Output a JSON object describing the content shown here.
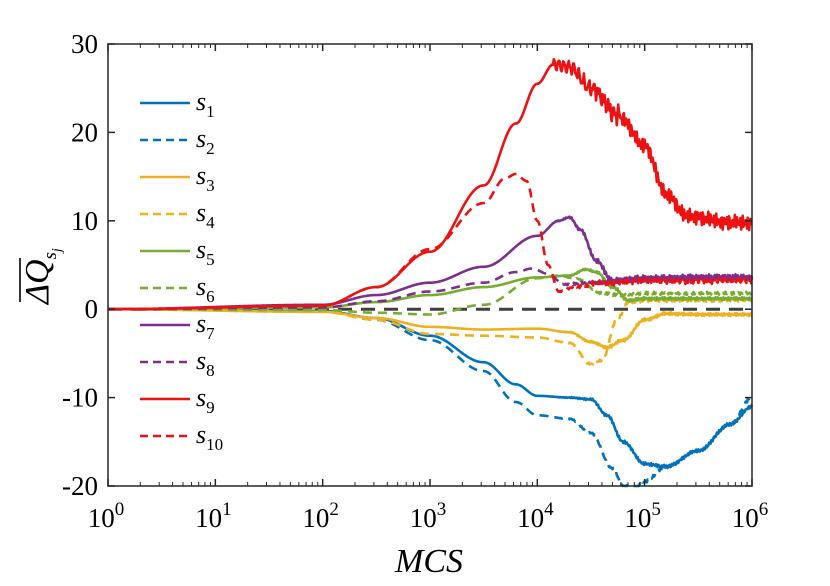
{
  "chart_data": {
    "type": "line",
    "xscale": "log",
    "xlim": [
      1,
      1000000
    ],
    "ylim": [
      -20,
      30
    ],
    "xlabel": "MCS",
    "ylabel": {
      "main": "ΔQ",
      "sub": "s",
      "subsub": "j"
    },
    "legend_position": "left",
    "x_ticks": [
      {
        "base": "10",
        "exp": "0",
        "value": 1
      },
      {
        "base": "10",
        "exp": "1",
        "value": 10
      },
      {
        "base": "10",
        "exp": "2",
        "value": 100
      },
      {
        "base": "10",
        "exp": "3",
        "value": 1000
      },
      {
        "base": "10",
        "exp": "4",
        "value": 10000
      },
      {
        "base": "10",
        "exp": "5",
        "value": 100000
      },
      {
        "base": "10",
        "exp": "6",
        "value": 1000000
      }
    ],
    "y_ticks": [
      {
        "label": "-20",
        "value": -20
      },
      {
        "label": "-10",
        "value": -10
      },
      {
        "label": "0",
        "value": 0
      },
      {
        "label": "10",
        "value": 10
      },
      {
        "label": "20",
        "value": 20
      },
      {
        "label": "30",
        "value": 30
      }
    ],
    "reference_line": {
      "y": 0,
      "color": "#404040",
      "style": "dashed"
    },
    "series": [
      {
        "name": "s",
        "sub": "1",
        "color": "#0072BD",
        "dash": "solid",
        "points": [
          [
            0,
            0
          ],
          [
            2,
            -0.2
          ],
          [
            2.5,
            -1
          ],
          [
            3,
            -3
          ],
          [
            3.5,
            -6
          ],
          [
            3.8,
            -8.5
          ],
          [
            4,
            -9.8
          ],
          [
            4.3,
            -10
          ],
          [
            4.5,
            -10.2
          ],
          [
            4.65,
            -12
          ],
          [
            4.8,
            -15
          ],
          [
            5,
            -17.5
          ],
          [
            5.2,
            -17.8
          ],
          [
            5.5,
            -16
          ],
          [
            5.8,
            -13
          ],
          [
            6,
            -11
          ]
        ]
      },
      {
        "name": "s",
        "sub": "2",
        "color": "#0072BD",
        "dash": "dashed",
        "points": [
          [
            0,
            0
          ],
          [
            2,
            -0.2
          ],
          [
            2.5,
            -1.2
          ],
          [
            3,
            -3.5
          ],
          [
            3.5,
            -7
          ],
          [
            3.8,
            -10.5
          ],
          [
            4,
            -12
          ],
          [
            4.3,
            -12.4
          ],
          [
            4.5,
            -14
          ],
          [
            4.7,
            -18
          ],
          [
            4.8,
            -20
          ],
          [
            4.9,
            -20.3
          ],
          [
            5,
            -19.5
          ],
          [
            5.2,
            -17.8
          ],
          [
            5.5,
            -16
          ],
          [
            5.8,
            -13
          ],
          [
            6,
            -10
          ]
        ]
      },
      {
        "name": "s",
        "sub": "3",
        "color": "#EDB120",
        "dash": "solid",
        "points": [
          [
            0,
            0
          ],
          [
            2,
            -0.3
          ],
          [
            2.5,
            -1
          ],
          [
            3,
            -2
          ],
          [
            3.5,
            -2.3
          ],
          [
            4,
            -2.2
          ],
          [
            4.3,
            -2.6
          ],
          [
            4.5,
            -3.7
          ],
          [
            4.65,
            -4.3
          ],
          [
            4.8,
            -3.5
          ],
          [
            5,
            -1.2
          ],
          [
            5.2,
            -0.5
          ],
          [
            5.5,
            -0.6
          ],
          [
            6,
            -0.6
          ]
        ]
      },
      {
        "name": "s",
        "sub": "4",
        "color": "#EDB120",
        "dash": "dashed",
        "points": [
          [
            0,
            0
          ],
          [
            2,
            -0.3
          ],
          [
            2.5,
            -1.2
          ],
          [
            3,
            -2.8
          ],
          [
            3.5,
            -3
          ],
          [
            4,
            -3.2
          ],
          [
            4.3,
            -3.8
          ],
          [
            4.5,
            -6.2
          ],
          [
            4.6,
            -5.8
          ],
          [
            4.75,
            -1
          ],
          [
            4.85,
            0.8
          ],
          [
            5,
            1
          ],
          [
            5.5,
            1
          ],
          [
            6,
            1
          ]
        ]
      },
      {
        "name": "s",
        "sub": "5",
        "color": "#77AC30",
        "dash": "solid",
        "points": [
          [
            0,
            0
          ],
          [
            2,
            0.2
          ],
          [
            2.5,
            0.8
          ],
          [
            3,
            1.6
          ],
          [
            3.5,
            2.5
          ],
          [
            4,
            3.6
          ],
          [
            4.3,
            3.8
          ],
          [
            4.45,
            4.5
          ],
          [
            4.55,
            4.2
          ],
          [
            4.7,
            2.5
          ],
          [
            4.85,
            1
          ],
          [
            5,
            1.2
          ],
          [
            5.5,
            1.2
          ],
          [
            6,
            1.2
          ]
        ]
      },
      {
        "name": "s",
        "sub": "6",
        "color": "#77AC30",
        "dash": "dashed",
        "points": [
          [
            0,
            0
          ],
          [
            2,
            -0.1
          ],
          [
            2.5,
            -0.4
          ],
          [
            3,
            -0.6
          ],
          [
            3.5,
            0.5
          ],
          [
            4,
            3.5
          ],
          [
            4.2,
            3.8
          ],
          [
            4.35,
            3.5
          ],
          [
            4.6,
            1.8
          ],
          [
            4.8,
            1.6
          ],
          [
            5,
            1.8
          ],
          [
            5.5,
            1.8
          ],
          [
            6,
            1.8
          ]
        ]
      },
      {
        "name": "s",
        "sub": "7",
        "color": "#7E2F8E",
        "dash": "solid",
        "points": [
          [
            0,
            0
          ],
          [
            2,
            0.5
          ],
          [
            2.5,
            1.6
          ],
          [
            3,
            3
          ],
          [
            3.5,
            4.8
          ],
          [
            4,
            8.3
          ],
          [
            4.2,
            10
          ],
          [
            4.3,
            10.4
          ],
          [
            4.4,
            9
          ],
          [
            4.55,
            5.5
          ],
          [
            4.7,
            3.2
          ],
          [
            5,
            3.5
          ],
          [
            5.5,
            3.6
          ],
          [
            6,
            3.6
          ]
        ]
      },
      {
        "name": "s",
        "sub": "8",
        "color": "#7E2F8E",
        "dash": "dashed",
        "points": [
          [
            0,
            0
          ],
          [
            2,
            0.2
          ],
          [
            2.5,
            0.9
          ],
          [
            3,
            2
          ],
          [
            3.5,
            3
          ],
          [
            3.8,
            4.2
          ],
          [
            3.95,
            4.6
          ],
          [
            4.1,
            4
          ],
          [
            4.25,
            2.8
          ],
          [
            4.5,
            3
          ],
          [
            5,
            3.3
          ],
          [
            5.5,
            3.5
          ],
          [
            6,
            3.6
          ]
        ]
      },
      {
        "name": "s",
        "sub": "9",
        "color": "#EE1111",
        "dash": "solid",
        "points": [
          [
            0,
            0
          ],
          [
            2,
            0.4
          ],
          [
            2.5,
            2.5
          ],
          [
            3,
            6.5
          ],
          [
            3.5,
            14
          ],
          [
            3.8,
            21
          ],
          [
            4,
            25.5
          ],
          [
            4.15,
            27.7
          ],
          [
            4.3,
            27.4
          ],
          [
            4.5,
            25
          ],
          [
            4.75,
            22
          ],
          [
            5,
            18.5
          ],
          [
            5.2,
            13
          ],
          [
            5.4,
            10.5
          ],
          [
            5.8,
            9.8
          ],
          [
            6,
            9.8
          ]
        ]
      },
      {
        "name": "s",
        "sub": "10",
        "color": "#EE1111",
        "dash": "dashed",
        "points": [
          [
            0,
            0
          ],
          [
            2,
            0.4
          ],
          [
            2.5,
            2.5
          ],
          [
            3,
            6.8
          ],
          [
            3.5,
            12
          ],
          [
            3.7,
            14.8
          ],
          [
            3.8,
            15.3
          ],
          [
            3.9,
            14.5
          ],
          [
            4,
            10
          ],
          [
            4.1,
            5
          ],
          [
            4.2,
            2
          ],
          [
            4.35,
            2.5
          ],
          [
            4.6,
            3
          ],
          [
            5,
            3.2
          ],
          [
            6,
            3.2
          ]
        ]
      }
    ]
  }
}
